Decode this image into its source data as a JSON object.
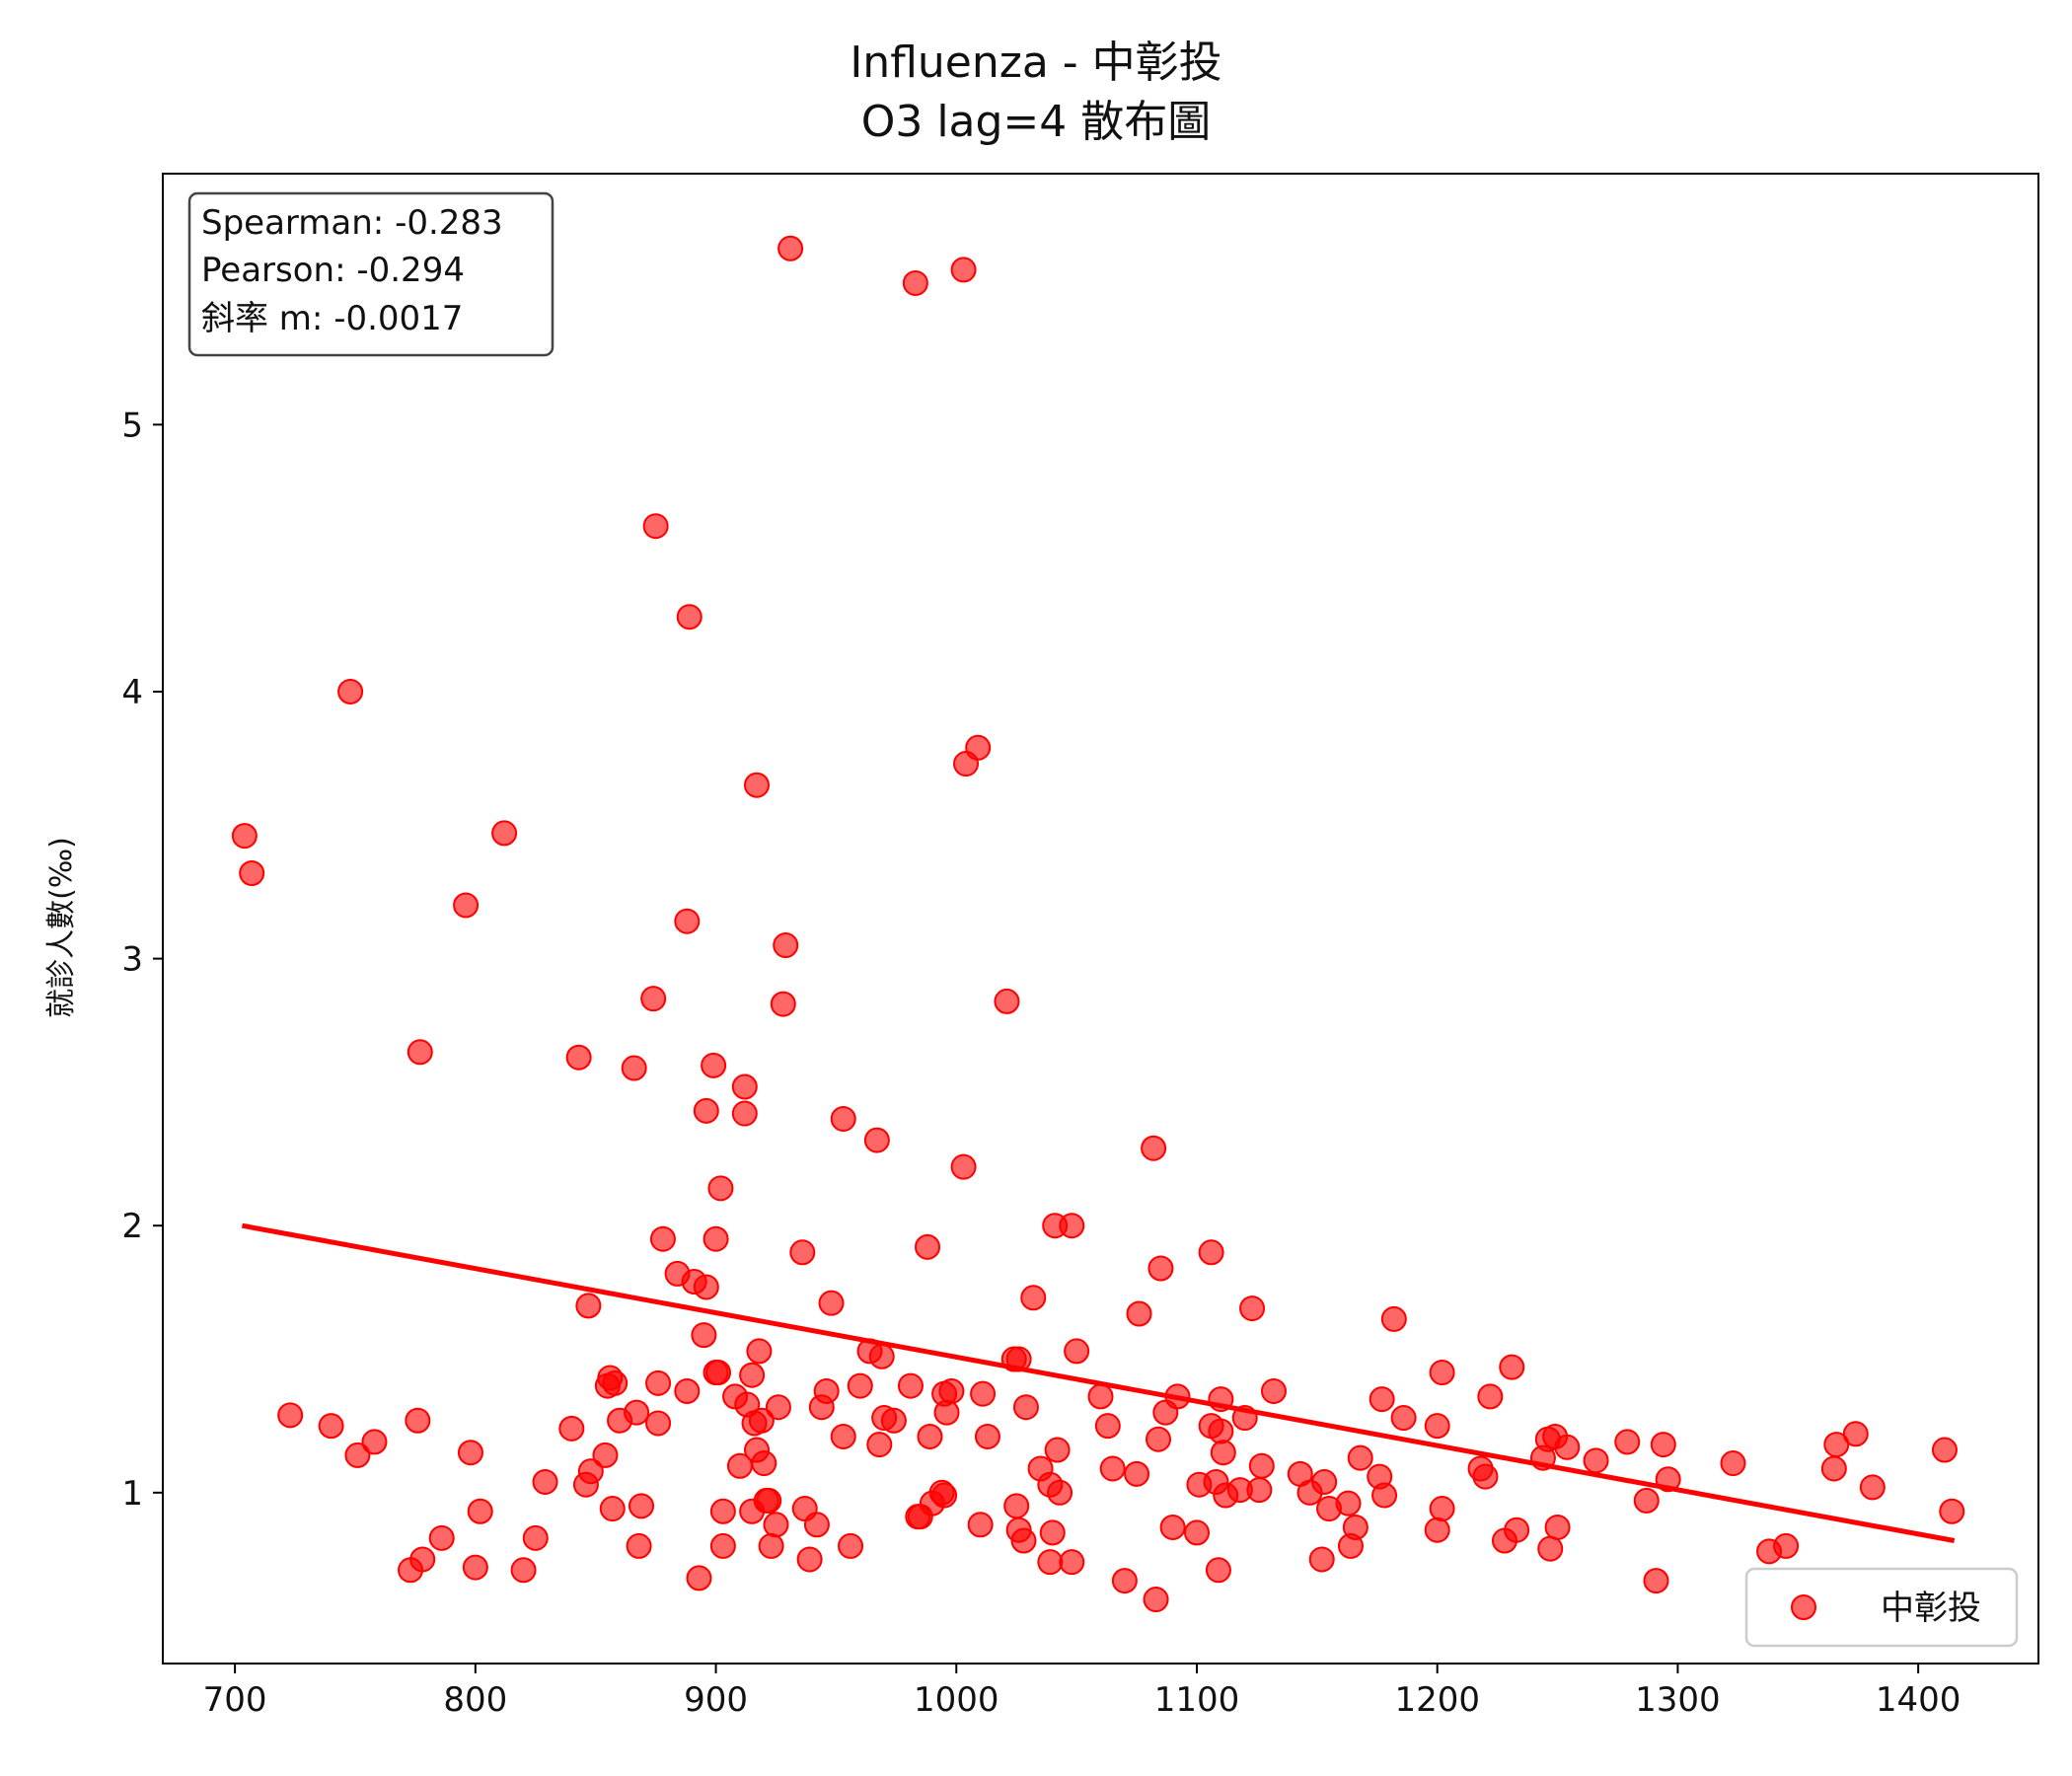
{
  "chart_data": {
    "type": "scatter",
    "title": "Influenza - 中彰投",
    "subtitle": "O3 lag=4 散布圖",
    "xlabel": "",
    "ylabel": "就診人數(‰)",
    "xlim": [
      670,
      1450
    ],
    "ylim": [
      0.36,
      5.94
    ],
    "xticks": [
      700,
      800,
      900,
      1000,
      1100,
      1200,
      1300,
      1400
    ],
    "yticks": [
      1,
      2,
      3,
      4,
      5
    ],
    "grid": false,
    "legend_position": "bottom-right",
    "series": [
      {
        "name": "中彰投",
        "color": "#ff0000",
        "marker": "circle",
        "points": [
          [
            704,
            3.46
          ],
          [
            707,
            3.32
          ],
          [
            723,
            1.29
          ],
          [
            740,
            1.25
          ],
          [
            748,
            4.0
          ],
          [
            751,
            1.14
          ],
          [
            758,
            1.19
          ],
          [
            773,
            0.71
          ],
          [
            776,
            1.27
          ],
          [
            777,
            2.65
          ],
          [
            778,
            0.75
          ],
          [
            786,
            0.83
          ],
          [
            796,
            3.2
          ],
          [
            798,
            1.15
          ],
          [
            800,
            0.72
          ],
          [
            802,
            0.93
          ],
          [
            812,
            3.47
          ],
          [
            820,
            0.71
          ],
          [
            825,
            0.83
          ],
          [
            829,
            1.04
          ],
          [
            840,
            1.24
          ],
          [
            843,
            2.63
          ],
          [
            846,
            1.03
          ],
          [
            847,
            1.7
          ],
          [
            848,
            1.08
          ],
          [
            854,
            1.14
          ],
          [
            855,
            1.4
          ],
          [
            856,
            1.43
          ],
          [
            857,
            0.94
          ],
          [
            858,
            1.41
          ],
          [
            860,
            1.27
          ],
          [
            866,
            2.59
          ],
          [
            867,
            1.3
          ],
          [
            868,
            0.8
          ],
          [
            869,
            0.95
          ],
          [
            874,
            2.85
          ],
          [
            875,
            4.62
          ],
          [
            876,
            1.41
          ],
          [
            876,
            1.26
          ],
          [
            878,
            1.95
          ],
          [
            884,
            1.82
          ],
          [
            888,
            1.38
          ],
          [
            888,
            3.14
          ],
          [
            889,
            4.28
          ],
          [
            891,
            1.79
          ],
          [
            893,
            0.68
          ],
          [
            895,
            1.59
          ],
          [
            896,
            1.77
          ],
          [
            896,
            2.43
          ],
          [
            899,
            2.6
          ],
          [
            900,
            1.95
          ],
          [
            900,
            1.45
          ],
          [
            901,
            1.45
          ],
          [
            902,
            2.14
          ],
          [
            903,
            0.8
          ],
          [
            903,
            0.93
          ],
          [
            908,
            1.36
          ],
          [
            910,
            1.1
          ],
          [
            912,
            2.52
          ],
          [
            912,
            2.42
          ],
          [
            913,
            1.33
          ],
          [
            915,
            0.93
          ],
          [
            915,
            1.44
          ],
          [
            916,
            1.26
          ],
          [
            917,
            1.16
          ],
          [
            917,
            3.65
          ],
          [
            918,
            1.53
          ],
          [
            919,
            1.27
          ],
          [
            920,
            1.11
          ],
          [
            921,
            0.97
          ],
          [
            922,
            0.97
          ],
          [
            923,
            0.8
          ],
          [
            925,
            0.88
          ],
          [
            926,
            1.32
          ],
          [
            928,
            2.83
          ],
          [
            929,
            3.05
          ],
          [
            931,
            5.66
          ],
          [
            936,
            1.9
          ],
          [
            937,
            0.94
          ],
          [
            939,
            0.75
          ],
          [
            942,
            0.88
          ],
          [
            944,
            1.32
          ],
          [
            946,
            1.38
          ],
          [
            948,
            1.71
          ],
          [
            953,
            2.4
          ],
          [
            953,
            1.21
          ],
          [
            956,
            0.8
          ],
          [
            960,
            1.4
          ],
          [
            964,
            1.53
          ],
          [
            967,
            2.32
          ],
          [
            968,
            1.18
          ],
          [
            969,
            1.51
          ],
          [
            970,
            1.28
          ],
          [
            974,
            1.27
          ],
          [
            981,
            1.4
          ],
          [
            984,
            0.91
          ],
          [
            985,
            0.91
          ],
          [
            983,
            5.53
          ],
          [
            988,
            1.92
          ],
          [
            989,
            1.21
          ],
          [
            990,
            0.96
          ],
          [
            994,
            1.0
          ],
          [
            995,
            1.37
          ],
          [
            995,
            0.99
          ],
          [
            996,
            1.3
          ],
          [
            998,
            1.38
          ],
          [
            1003,
            5.58
          ],
          [
            1003,
            2.22
          ],
          [
            1004,
            3.73
          ],
          [
            1009,
            3.79
          ],
          [
            1010,
            0.88
          ],
          [
            1011,
            1.37
          ],
          [
            1013,
            1.21
          ],
          [
            1021,
            2.84
          ],
          [
            1024,
            1.5
          ],
          [
            1025,
            0.95
          ],
          [
            1026,
            1.5
          ],
          [
            1026,
            0.86
          ],
          [
            1028,
            0.82
          ],
          [
            1029,
            1.32
          ],
          [
            1032,
            1.73
          ],
          [
            1035,
            1.09
          ],
          [
            1039,
            0.74
          ],
          [
            1039,
            1.03
          ],
          [
            1040,
            0.85
          ],
          [
            1041,
            2.0
          ],
          [
            1042,
            1.16
          ],
          [
            1043,
            1.0
          ],
          [
            1048,
            2.0
          ],
          [
            1048,
            0.74
          ],
          [
            1050,
            1.53
          ],
          [
            1060,
            1.36
          ],
          [
            1063,
            1.25
          ],
          [
            1065,
            1.09
          ],
          [
            1070,
            0.67
          ],
          [
            1075,
            1.07
          ],
          [
            1076,
            1.67
          ],
          [
            1082,
            2.29
          ],
          [
            1083,
            0.6
          ],
          [
            1084,
            1.2
          ],
          [
            1085,
            1.84
          ],
          [
            1087,
            1.3
          ],
          [
            1090,
            0.87
          ],
          [
            1092,
            1.36
          ],
          [
            1100,
            0.85
          ],
          [
            1101,
            1.03
          ],
          [
            1106,
            1.9
          ],
          [
            1106,
            1.25
          ],
          [
            1108,
            1.04
          ],
          [
            1109,
            0.71
          ],
          [
            1110,
            1.35
          ],
          [
            1110,
            1.23
          ],
          [
            1111,
            1.15
          ],
          [
            1112,
            0.99
          ],
          [
            1118,
            1.01
          ],
          [
            1120,
            1.28
          ],
          [
            1123,
            1.69
          ],
          [
            1126,
            1.01
          ],
          [
            1127,
            1.1
          ],
          [
            1132,
            1.38
          ],
          [
            1143,
            1.07
          ],
          [
            1147,
            1.0
          ],
          [
            1152,
            0.75
          ],
          [
            1153,
            1.04
          ],
          [
            1155,
            0.94
          ],
          [
            1163,
            0.96
          ],
          [
            1164,
            0.8
          ],
          [
            1166,
            0.87
          ],
          [
            1168,
            1.13
          ],
          [
            1176,
            1.06
          ],
          [
            1177,
            1.35
          ],
          [
            1178,
            0.99
          ],
          [
            1182,
            1.65
          ],
          [
            1186,
            1.28
          ],
          [
            1200,
            0.86
          ],
          [
            1200,
            1.25
          ],
          [
            1202,
            0.94
          ],
          [
            1202,
            1.45
          ],
          [
            1218,
            1.09
          ],
          [
            1220,
            1.06
          ],
          [
            1222,
            1.36
          ],
          [
            1228,
            0.82
          ],
          [
            1231,
            1.47
          ],
          [
            1233,
            0.86
          ],
          [
            1244,
            1.13
          ],
          [
            1246,
            1.2
          ],
          [
            1247,
            0.79
          ],
          [
            1249,
            1.21
          ],
          [
            1250,
            0.87
          ],
          [
            1254,
            1.17
          ],
          [
            1266,
            1.12
          ],
          [
            1279,
            1.19
          ],
          [
            1287,
            0.97
          ],
          [
            1291,
            0.67
          ],
          [
            1294,
            1.18
          ],
          [
            1296,
            1.05
          ],
          [
            1323,
            1.11
          ],
          [
            1338,
            0.78
          ],
          [
            1345,
            0.8
          ],
          [
            1365,
            1.09
          ],
          [
            1366,
            1.18
          ],
          [
            1374,
            1.22
          ],
          [
            1381,
            1.02
          ],
          [
            1411,
            1.16
          ],
          [
            1414,
            0.93
          ]
        ]
      }
    ],
    "regression_line": {
      "color": "#ff0000",
      "x": [
        703,
        1415
      ],
      "y": [
        2.0,
        0.82
      ]
    },
    "annotations": {
      "stats": [
        "Spearman: -0.283",
        "Pearson: -0.294",
        "斜率 m: -0.0017"
      ]
    },
    "legend": {
      "entries": [
        "中彰投"
      ]
    }
  }
}
